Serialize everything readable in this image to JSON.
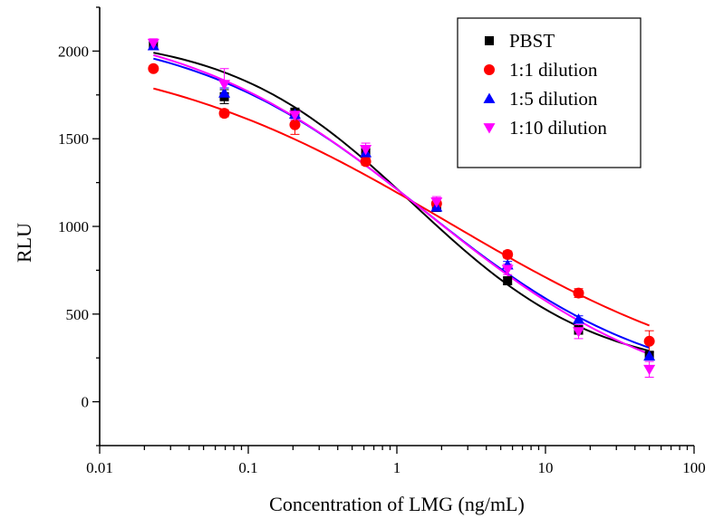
{
  "chart_data": {
    "type": "scatter",
    "xlabel": "Concentration of LMG (ng/mL)",
    "ylabel": "RLU",
    "x_scale": "log",
    "xlim": [
      0.01,
      100
    ],
    "ylim": [
      -250,
      2250
    ],
    "x_ticks": [
      0.01,
      0.1,
      1,
      10,
      100
    ],
    "x_tick_labels": [
      "0.01",
      "0.1",
      "1",
      "10",
      "100"
    ],
    "y_ticks": [
      0,
      500,
      1000,
      1500,
      2000
    ],
    "y_tick_labels": [
      "0",
      "500",
      "1000",
      "1500",
      "2000"
    ],
    "grid": false,
    "legend_position": "top-right",
    "series": [
      {
        "name": "PBST",
        "marker": "square",
        "color": "#000000",
        "x": [
          0.023,
          0.069,
          0.206,
          0.617,
          1.85,
          5.56,
          16.7,
          50
        ],
        "y": [
          2040,
          1740,
          1650,
          1420,
          1110,
          690,
          410,
          265
        ],
        "err": [
          25,
          40,
          25,
          30,
          25,
          20,
          25,
          20
        ],
        "fit": {
          "top": 2100,
          "bottom": 150,
          "ec50": 1.3,
          "slope": 0.7
        }
      },
      {
        "name": "1:1 dilution",
        "marker": "circle",
        "color": "#ff0000",
        "x": [
          0.023,
          0.069,
          0.206,
          0.617,
          1.85,
          5.56,
          16.7,
          50
        ],
        "y": [
          1900,
          1645,
          1580,
          1370,
          1130,
          840,
          620,
          345
        ],
        "err": [
          15,
          20,
          55,
          20,
          30,
          20,
          25,
          60
        ],
        "fit": {
          "top": 2050,
          "bottom": 0,
          "ec50": 2.2,
          "slope": 0.42
        }
      },
      {
        "name": "1:5 dilution",
        "marker": "triangle-up",
        "color": "#0000ff",
        "x": [
          0.023,
          0.069,
          0.206,
          0.617,
          1.85,
          5.56,
          16.7,
          50
        ],
        "y": [
          2030,
          1760,
          1640,
          1420,
          1110,
          780,
          470,
          260
        ],
        "err": [
          20,
          30,
          25,
          20,
          20,
          20,
          20,
          20
        ],
        "fit": {
          "top": 2150,
          "bottom": 40,
          "ec50": 1.5,
          "slope": 0.55
        }
      },
      {
        "name": "1:10 dilution",
        "marker": "triangle-down",
        "color": "#ff00ff",
        "x": [
          0.023,
          0.069,
          0.206,
          0.617,
          1.85,
          5.56,
          16.7,
          50
        ],
        "y": [
          2045,
          1810,
          1635,
          1440,
          1140,
          755,
          400,
          185
        ],
        "err": [
          25,
          90,
          30,
          35,
          30,
          30,
          40,
          45
        ],
        "fit": {
          "top": 2200,
          "bottom": -50,
          "ec50": 1.6,
          "slope": 0.52
        }
      }
    ]
  }
}
